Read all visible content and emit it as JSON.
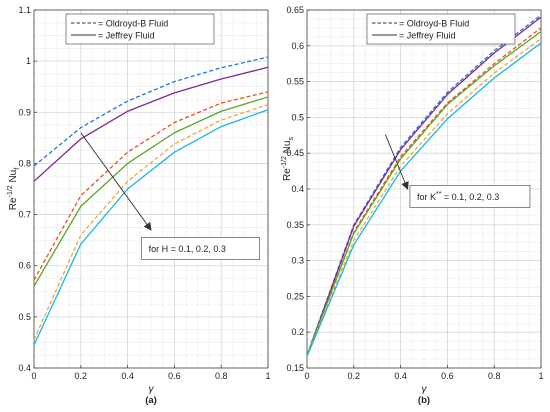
{
  "chart_data": [
    {
      "type": "line",
      "panel_label": "(a)",
      "xlabel": "γ",
      "ylabel": {
        "base": "Re",
        "exp": "-1/2",
        "main": " Nu",
        "sub": "f"
      },
      "xlim": [
        0,
        1
      ],
      "ylim": [
        0.4,
        1.1
      ],
      "xticks": [
        0,
        0.2,
        0.4,
        0.6,
        0.8,
        1
      ],
      "xtick_labels": [
        "0",
        "0.2",
        "0.4",
        "0.6",
        "0.8",
        "1"
      ],
      "yticks": [
        0.4,
        0.5,
        0.6,
        0.7,
        0.8,
        0.9,
        1,
        1.1
      ],
      "ytick_labels": [
        "0.4",
        "0.5",
        "0.6",
        "0.7",
        "0.8",
        "0.9",
        "1",
        "1.1"
      ],
      "grid": true,
      "legend": {
        "placement": "top-center",
        "entries": [
          {
            "label": "= Oldroyd-B Fluid",
            "style": "dashed"
          },
          {
            "label": "= Jeffrey Fluid",
            "style": "solid"
          }
        ]
      },
      "annotation": {
        "text": "for H = 0.1, 0.2, 0.3",
        "arrow_from": [
          0.2,
          0.86
        ],
        "arrow_to": [
          0.5,
          0.67
        ],
        "box_at": [
          0.46,
          0.655
        ]
      },
      "x": [
        0,
        0.2,
        0.4,
        0.6,
        0.8,
        1
      ],
      "series": [
        {
          "color": "#1f77d4",
          "style": "dashed",
          "values": [
            0.795,
            0.87,
            0.922,
            0.96,
            0.987,
            1.008
          ]
        },
        {
          "color": "#7b2a8e",
          "style": "solid",
          "values": [
            0.765,
            0.848,
            0.902,
            0.938,
            0.965,
            0.988
          ]
        },
        {
          "color": "#e8501e",
          "style": "dashed",
          "values": [
            0.572,
            0.737,
            0.822,
            0.88,
            0.918,
            0.94
          ]
        },
        {
          "color": "#5aa628",
          "style": "solid",
          "values": [
            0.56,
            0.716,
            0.8,
            0.86,
            0.902,
            0.93
          ]
        },
        {
          "color": "#f0a830",
          "style": "dashed",
          "values": [
            0.455,
            0.66,
            0.765,
            0.838,
            0.885,
            0.915
          ]
        },
        {
          "color": "#1ab8e0",
          "style": "solid",
          "values": [
            0.445,
            0.642,
            0.75,
            0.822,
            0.872,
            0.905
          ]
        }
      ]
    },
    {
      "type": "line",
      "panel_label": "(b)",
      "xlabel": "γ",
      "ylabel": {
        "base": "Re",
        "exp": "-1/2",
        "main": " Nu",
        "sub": "s"
      },
      "xlim": [
        0,
        1
      ],
      "ylim": [
        0.15,
        0.65
      ],
      "xticks": [
        0,
        0.2,
        0.4,
        0.6,
        0.8,
        1
      ],
      "xtick_labels": [
        "0",
        "0.2",
        "0.4",
        "0.6",
        "0.8",
        "1"
      ],
      "yticks": [
        0.15,
        0.2,
        0.25,
        0.3,
        0.35,
        0.4,
        0.45,
        0.5,
        0.55,
        0.6,
        0.65
      ],
      "ytick_labels": [
        "0.15",
        "0.2",
        "0.25",
        "0.3",
        "0.35",
        "0.4",
        "0.45",
        "0.5",
        "0.55",
        "0.6",
        "0.65"
      ],
      "grid": true,
      "legend": {
        "placement": "top-center",
        "entries": [
          {
            "label": "= Oldroyd-B Fluid",
            "style": "dashed"
          },
          {
            "label": "= Jeffrey Fluid",
            "style": "solid"
          }
        ]
      },
      "annotation": {
        "text": {
          "pre": "for K",
          "sup": "**",
          "post": " = 0.1, 0.2, 0.3"
        },
        "arrow_from": [
          0.335,
          0.476
        ],
        "arrow_to": [
          0.43,
          0.4
        ],
        "box_at": [
          0.44,
          0.405
        ]
      },
      "x": [
        0,
        0.2,
        0.4,
        0.6,
        0.8,
        1
      ],
      "series": [
        {
          "color": "#1f77d4",
          "style": "dashed",
          "values": [
            0.168,
            0.35,
            0.458,
            0.535,
            0.593,
            0.643
          ]
        },
        {
          "color": "#7b2a8e",
          "style": "solid",
          "values": [
            0.167,
            0.348,
            0.455,
            0.532,
            0.59,
            0.64
          ]
        },
        {
          "color": "#e8501e",
          "style": "dashed",
          "values": [
            0.167,
            0.34,
            0.445,
            0.52,
            0.575,
            0.625
          ]
        },
        {
          "color": "#5aa628",
          "style": "solid",
          "values": [
            0.167,
            0.338,
            0.442,
            0.518,
            0.572,
            0.62
          ]
        },
        {
          "color": "#f0a830",
          "style": "dashed",
          "values": [
            0.167,
            0.328,
            0.432,
            0.505,
            0.562,
            0.61
          ]
        },
        {
          "color": "#1ab8e0",
          "style": "solid",
          "values": [
            0.166,
            0.322,
            0.425,
            0.498,
            0.555,
            0.604
          ]
        }
      ]
    }
  ]
}
